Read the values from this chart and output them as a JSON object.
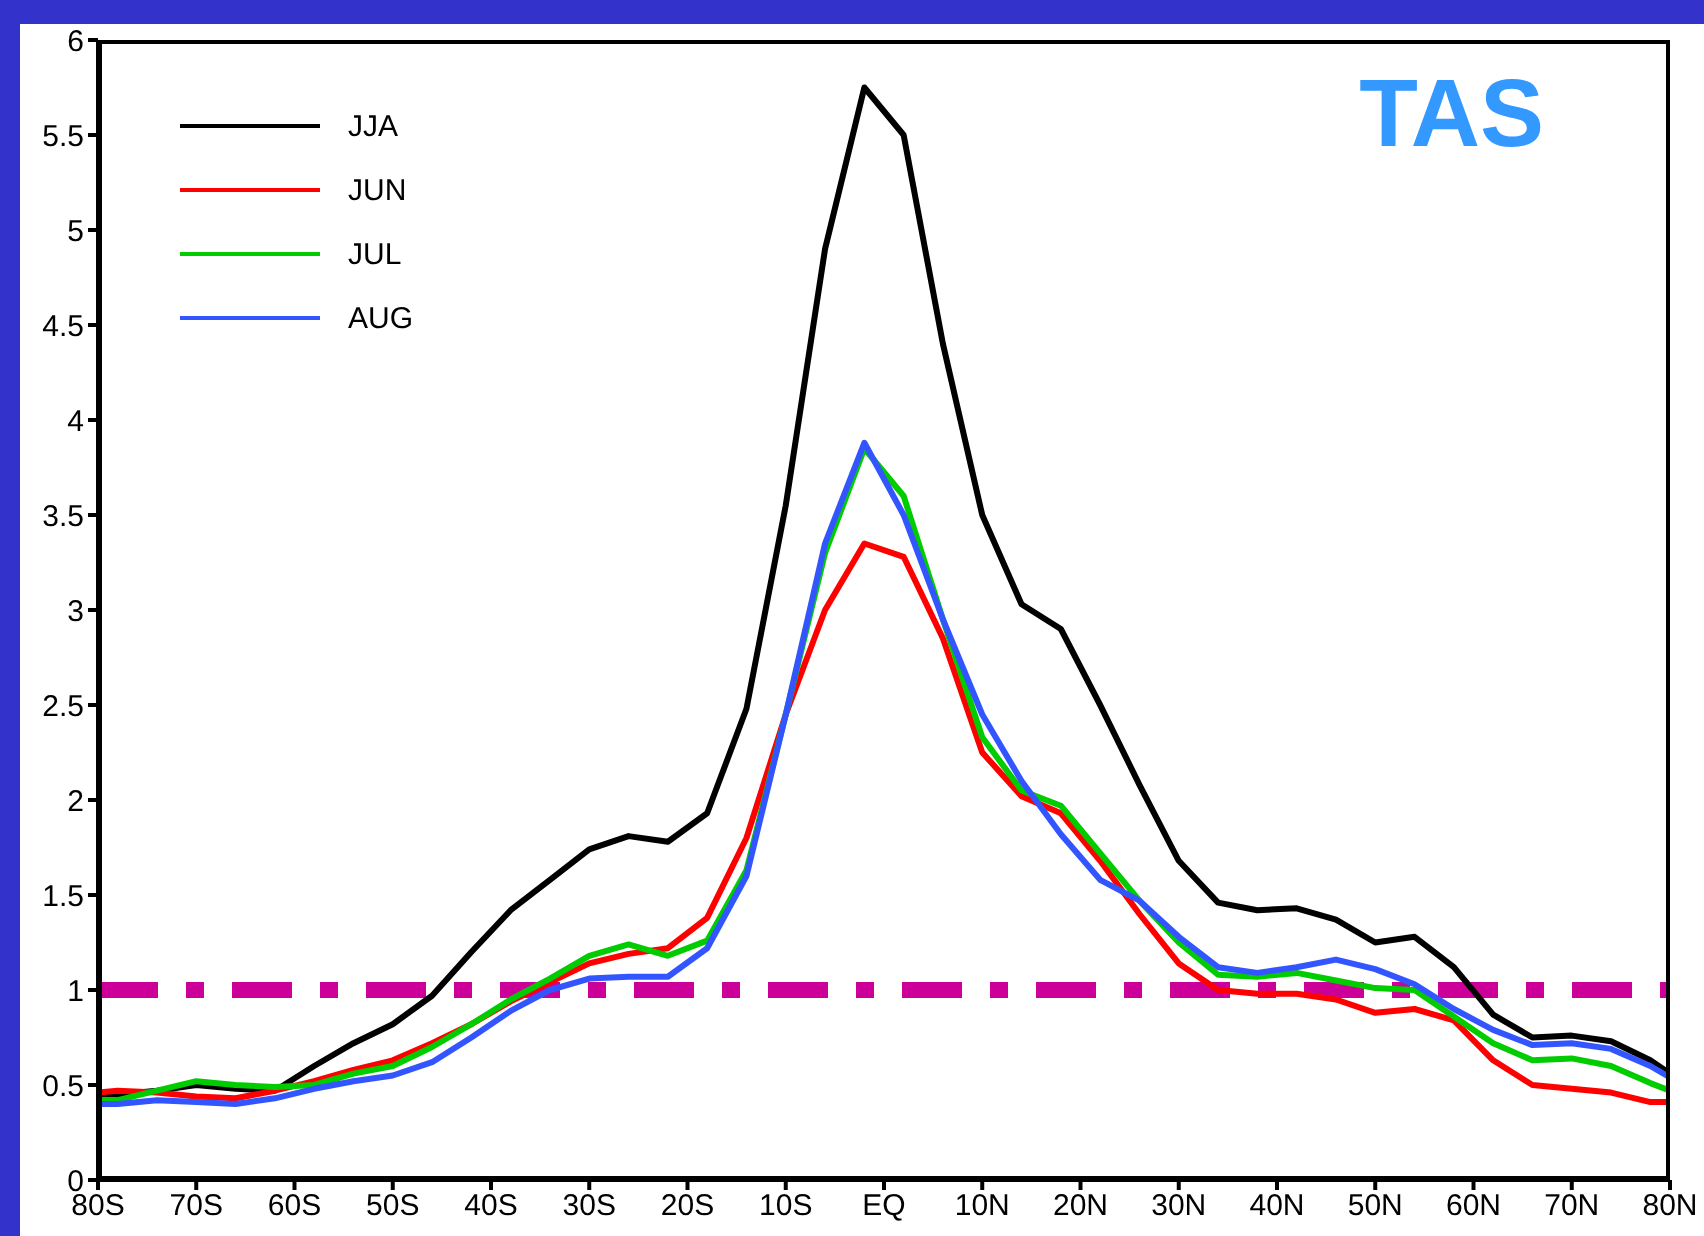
{
  "chart_data": {
    "type": "line",
    "annotations": [
      "TAS"
    ],
    "x": [
      -80,
      -78,
      -74,
      -70,
      -66,
      -62,
      -58,
      -54,
      -50,
      -46,
      -42,
      -38,
      -34,
      -30,
      -26,
      -22,
      -18,
      -14,
      -10,
      -6,
      -2,
      2,
      6,
      10,
      14,
      18,
      22,
      26,
      30,
      34,
      38,
      42,
      46,
      50,
      54,
      58,
      62,
      66,
      70,
      74,
      78,
      80
    ],
    "series": [
      {
        "name": "JJA",
        "color": "#000000",
        "values": [
          0.45,
          0.45,
          0.47,
          0.5,
          0.48,
          0.47,
          0.6,
          0.72,
          0.82,
          0.97,
          1.2,
          1.42,
          1.58,
          1.74,
          1.81,
          1.78,
          1.93,
          2.48,
          3.55,
          4.9,
          5.75,
          5.5,
          4.4,
          3.5,
          3.03,
          2.9,
          2.5,
          2.08,
          1.68,
          1.46,
          1.42,
          1.43,
          1.37,
          1.25,
          1.28,
          1.12,
          0.87,
          0.75,
          0.76,
          0.73,
          0.63,
          0.56
        ]
      },
      {
        "name": "JUN",
        "color": "#ff0000",
        "values": [
          0.46,
          0.47,
          0.46,
          0.44,
          0.43,
          0.47,
          0.52,
          0.58,
          0.63,
          0.72,
          0.82,
          0.94,
          1.04,
          1.14,
          1.19,
          1.22,
          1.38,
          1.8,
          2.45,
          3.0,
          3.35,
          3.28,
          2.85,
          2.25,
          2.02,
          1.93,
          1.68,
          1.4,
          1.14,
          1.0,
          0.98,
          0.98,
          0.95,
          0.88,
          0.9,
          0.84,
          0.63,
          0.5,
          0.48,
          0.46,
          0.41,
          0.41
        ]
      },
      {
        "name": "JUL",
        "color": "#00cc00",
        "values": [
          0.42,
          0.42,
          0.47,
          0.52,
          0.5,
          0.49,
          0.5,
          0.56,
          0.6,
          0.7,
          0.82,
          0.95,
          1.06,
          1.18,
          1.24,
          1.18,
          1.26,
          1.63,
          2.45,
          3.3,
          3.85,
          3.6,
          2.95,
          2.33,
          2.05,
          1.97,
          1.72,
          1.47,
          1.25,
          1.08,
          1.07,
          1.09,
          1.05,
          1.01,
          1.0,
          0.86,
          0.72,
          0.63,
          0.64,
          0.6,
          0.51,
          0.47
        ]
      },
      {
        "name": "AUG",
        "color": "#3355ff",
        "values": [
          0.4,
          0.4,
          0.42,
          0.41,
          0.4,
          0.43,
          0.48,
          0.52,
          0.55,
          0.62,
          0.75,
          0.89,
          1.0,
          1.06,
          1.07,
          1.07,
          1.22,
          1.6,
          2.45,
          3.35,
          3.88,
          3.5,
          2.95,
          2.45,
          2.1,
          1.82,
          1.58,
          1.47,
          1.28,
          1.12,
          1.09,
          1.12,
          1.16,
          1.11,
          1.03,
          0.9,
          0.79,
          0.71,
          0.72,
          0.69,
          0.6,
          0.54
        ]
      }
    ],
    "xlim": [
      -80,
      80
    ],
    "xticks": [
      {
        "value": -80,
        "label": "80S"
      },
      {
        "value": -70,
        "label": "70S"
      },
      {
        "value": -60,
        "label": "60S"
      },
      {
        "value": -50,
        "label": "50S"
      },
      {
        "value": -40,
        "label": "40S"
      },
      {
        "value": -30,
        "label": "30S"
      },
      {
        "value": -20,
        "label": "20S"
      },
      {
        "value": -10,
        "label": "10S"
      },
      {
        "value": 0,
        "label": "EQ"
      },
      {
        "value": 10,
        "label": "10N"
      },
      {
        "value": 20,
        "label": "20N"
      },
      {
        "value": 30,
        "label": "30N"
      },
      {
        "value": 40,
        "label": "40N"
      },
      {
        "value": 50,
        "label": "50N"
      },
      {
        "value": 60,
        "label": "60N"
      },
      {
        "value": 70,
        "label": "70N"
      },
      {
        "value": 80,
        "label": "80N"
      }
    ],
    "ylim": [
      0,
      6
    ],
    "yticks": [
      0,
      0.5,
      1,
      1.5,
      2,
      2.5,
      3,
      3.5,
      4,
      4.5,
      5,
      5.5,
      6
    ],
    "ref_lines": [
      {
        "axis": "y",
        "value": 1,
        "color": "#cc0099",
        "line_style": "dashed"
      }
    ],
    "legend": "top left",
    "grid": false,
    "marker": "none",
    "line_style": "solid"
  }
}
